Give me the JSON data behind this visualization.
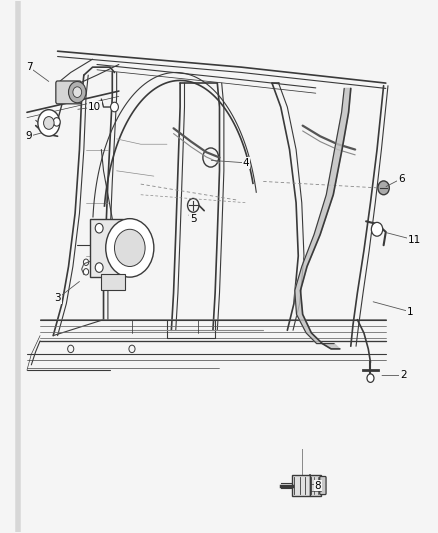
{
  "bg_color": "#f5f5f5",
  "line_color": "#3a3a3a",
  "label_color": "#000000",
  "figsize": [
    4.39,
    5.33
  ],
  "dpi": 100,
  "border_color": "#cccccc",
  "leaders": {
    "1": [
      0.935,
      0.415,
      0.845,
      0.435
    ],
    "2": [
      0.92,
      0.295,
      0.865,
      0.295
    ],
    "3": [
      0.13,
      0.44,
      0.185,
      0.475
    ],
    "4": [
      0.56,
      0.695,
      0.475,
      0.7
    ],
    "5": [
      0.44,
      0.59,
      0.425,
      0.6
    ],
    "6": [
      0.915,
      0.665,
      0.875,
      0.648
    ],
    "7": [
      0.065,
      0.875,
      0.115,
      0.845
    ],
    "8": [
      0.725,
      0.088,
      0.72,
      0.105
    ],
    "9": [
      0.065,
      0.745,
      0.11,
      0.755
    ],
    "10": [
      0.215,
      0.8,
      0.17,
      0.795
    ],
    "11": [
      0.945,
      0.55,
      0.875,
      0.565
    ]
  }
}
